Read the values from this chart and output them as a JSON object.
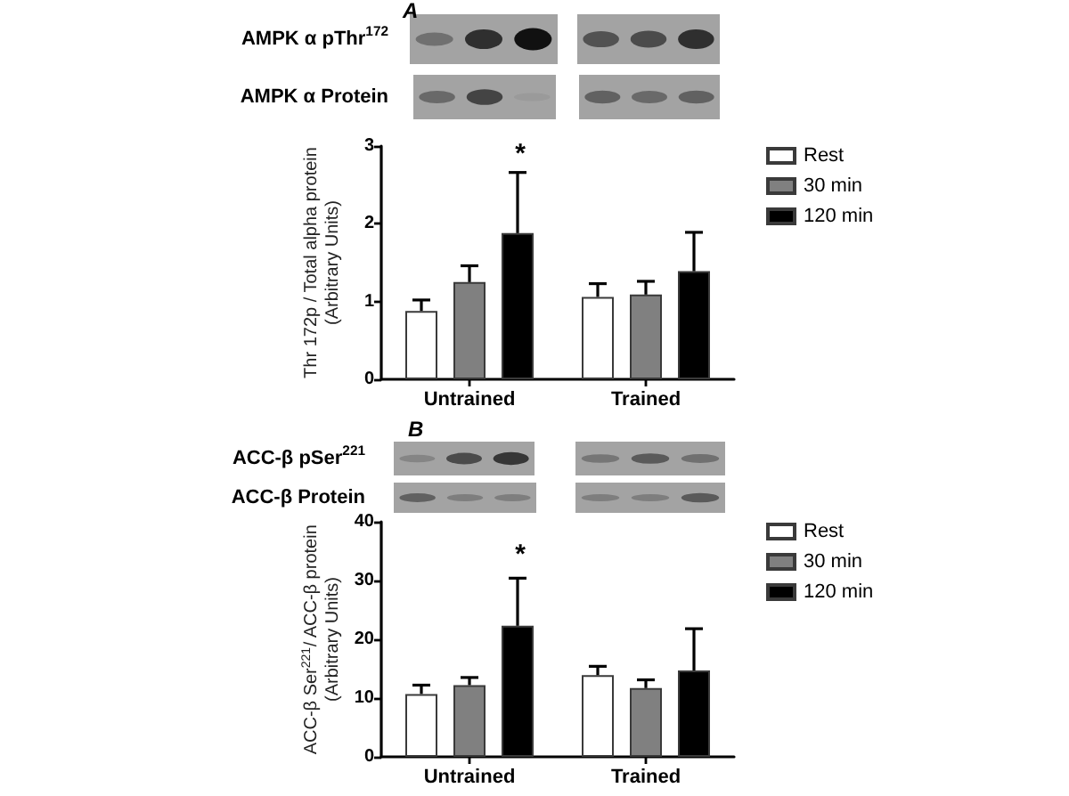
{
  "chart_data": [
    {
      "type": "bar",
      "annotations": [
        "A",
        "AMPK α pThr$^{172}$",
        "AMPK α Protein",
        "*"
      ],
      "ylabel": "Thr 172p / Total alpha protein\n(Arbitrary Units)",
      "categories": [
        "Untrained",
        "Trained"
      ],
      "series": [
        {
          "name": "Rest",
          "color": "#ffffff",
          "values": [
            0.88,
            1.06
          ],
          "errors": [
            [
              0.88,
              1.02
            ],
            [
              1.06,
              1.23
            ]
          ]
        },
        {
          "name": "30 min",
          "color": "#808080",
          "values": [
            1.25,
            1.09
          ],
          "errors": [
            [
              1.25,
              1.46
            ],
            [
              1.09,
              1.26
            ]
          ]
        },
        {
          "name": "120 min",
          "color": "#000000",
          "values": [
            1.88,
            1.39
          ],
          "errors": [
            [
              1.88,
              2.66
            ],
            [
              1.39,
              1.89
            ]
          ]
        }
      ],
      "ylim": [
        0,
        3
      ],
      "yticks": [
        0,
        1,
        2,
        3
      ],
      "legend": "right",
      "grid": false
    },
    {
      "type": "bar",
      "annotations": [
        "B",
        "ACC-β pSer$^{221}$",
        "ACC-β Protein",
        "*"
      ],
      "ylabel": "ACC-β Ser$^{221}$/ ACC-β protein\n(Arbitrary Units)",
      "categories": [
        "Untrained",
        "Trained"
      ],
      "series": [
        {
          "name": "Rest",
          "color": "#ffffff",
          "values": [
            10.7,
            13.9
          ],
          "errors": [
            [
              10.7,
              12.2
            ],
            [
              13.9,
              15.4
            ]
          ]
        },
        {
          "name": "30 min",
          "color": "#808080",
          "values": [
            12.2,
            11.7
          ],
          "errors": [
            [
              12.2,
              13.5
            ],
            [
              11.7,
              13.1
            ]
          ]
        },
        {
          "name": "120 min",
          "color": "#000000",
          "values": [
            22.3,
            14.7
          ],
          "errors": [
            [
              22.3,
              30.4
            ],
            [
              14.7,
              21.8
            ]
          ]
        }
      ],
      "ylim": [
        0,
        40
      ],
      "yticks": [
        0,
        10,
        20,
        30,
        40
      ],
      "legend": "right",
      "grid": false
    }
  ]
}
